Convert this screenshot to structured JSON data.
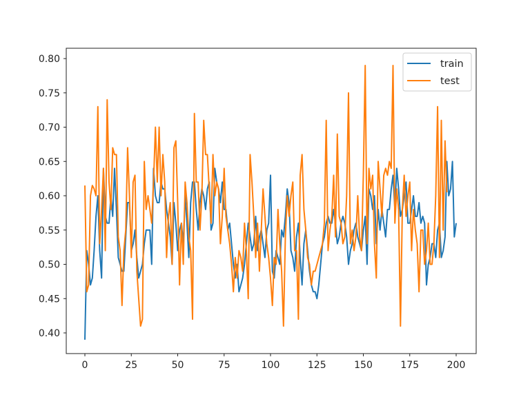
{
  "chart_data": {
    "type": "line",
    "title": "",
    "xlabel": "",
    "ylabel": "",
    "xlim": [
      -10,
      210
    ],
    "ylim": [
      0.375,
      0.82
    ],
    "xticks": [
      0,
      25,
      50,
      75,
      100,
      125,
      150,
      175,
      200
    ],
    "yticks": [
      0.4,
      0.45,
      0.5,
      0.55,
      0.6,
      0.65,
      0.7,
      0.75,
      0.8
    ],
    "ytick_labels": [
      "0.40",
      "0.45",
      "0.50",
      "0.55",
      "0.60",
      "0.65",
      "0.70",
      "0.75",
      "0.80"
    ],
    "grid": false,
    "legend_position": "upper right",
    "series": [
      {
        "name": "train",
        "color": "#1f77b4",
        "values": [
          0.39,
          0.52,
          0.5,
          0.47,
          0.48,
          0.52,
          0.57,
          0.6,
          0.52,
          0.48,
          0.64,
          0.57,
          0.56,
          0.56,
          0.6,
          0.57,
          0.64,
          0.58,
          0.51,
          0.5,
          0.49,
          0.49,
          0.54,
          0.59,
          0.59,
          0.52,
          0.53,
          0.55,
          0.51,
          0.48,
          0.49,
          0.5,
          0.53,
          0.55,
          0.55,
          0.55,
          0.5,
          0.64,
          0.6,
          0.59,
          0.59,
          0.62,
          0.61,
          0.61,
          0.58,
          0.56,
          0.54,
          0.5,
          0.59,
          0.56,
          0.52,
          0.55,
          0.56,
          0.53,
          0.6,
          0.56,
          0.51,
          0.59,
          0.62,
          0.62,
          0.58,
          0.55,
          0.59,
          0.61,
          0.6,
          0.58,
          0.61,
          0.62,
          0.55,
          0.56,
          0.64,
          0.62,
          0.61,
          0.59,
          0.62,
          0.58,
          0.58,
          0.55,
          0.56,
          0.53,
          0.5,
          0.48,
          0.5,
          0.46,
          0.47,
          0.48,
          0.5,
          0.53,
          0.56,
          0.54,
          0.52,
          0.53,
          0.57,
          0.52,
          0.54,
          0.55,
          0.53,
          0.51,
          0.55,
          0.56,
          0.63,
          0.49,
          0.48,
          0.52,
          0.51,
          0.5,
          0.55,
          0.54,
          0.57,
          0.61,
          0.59,
          0.52,
          0.51,
          0.49,
          0.54,
          0.56,
          0.51,
          0.47,
          0.53,
          0.55,
          0.52,
          0.49,
          0.47,
          0.46,
          0.46,
          0.45,
          0.47,
          0.5,
          0.53,
          0.54,
          0.56,
          0.57,
          0.56,
          0.56,
          0.58,
          0.56,
          0.53,
          0.54,
          0.56,
          0.57,
          0.56,
          0.54,
          0.5,
          0.52,
          0.53,
          0.55,
          0.56,
          0.54,
          0.53,
          0.52,
          0.55,
          0.57,
          0.5,
          0.61,
          0.6,
          0.58,
          0.6,
          0.53,
          0.58,
          0.55,
          0.58,
          0.56,
          0.54,
          0.58,
          0.58,
          0.61,
          0.63,
          0.58,
          0.64,
          0.61,
          0.57,
          0.58,
          0.6,
          0.62,
          0.56,
          0.56,
          0.58,
          0.6,
          0.57,
          0.57,
          0.59,
          0.56,
          0.57,
          0.56,
          0.47,
          0.5,
          0.51,
          0.53,
          0.53,
          0.51,
          0.55,
          0.56,
          0.51,
          0.52,
          0.54,
          0.65,
          0.6,
          0.61,
          0.65,
          0.54,
          0.56
        ]
      },
      {
        "name": "test",
        "color": "#ff7f0e",
        "values": [
          0.615,
          0.46,
          0.47,
          0.6,
          0.615,
          0.61,
          0.6,
          0.73,
          0.53,
          0.58,
          0.64,
          0.52,
          0.74,
          0.62,
          0.58,
          0.67,
          0.66,
          0.66,
          0.54,
          0.52,
          0.44,
          0.52,
          0.55,
          0.67,
          0.6,
          0.51,
          0.62,
          0.63,
          0.49,
          0.45,
          0.41,
          0.42,
          0.65,
          0.58,
          0.6,
          0.58,
          0.56,
          0.62,
          0.7,
          0.62,
          0.7,
          0.6,
          0.66,
          0.62,
          0.51,
          0.57,
          0.59,
          0.5,
          0.67,
          0.68,
          0.59,
          0.47,
          0.56,
          0.5,
          0.62,
          0.59,
          0.54,
          0.52,
          0.42,
          0.72,
          0.62,
          0.62,
          0.55,
          0.6,
          0.71,
          0.66,
          0.66,
          0.61,
          0.56,
          0.66,
          0.6,
          0.62,
          0.61,
          0.53,
          0.57,
          0.64,
          0.57,
          0.55,
          0.53,
          0.5,
          0.46,
          0.51,
          0.48,
          0.52,
          0.51,
          0.49,
          0.56,
          0.52,
          0.45,
          0.66,
          0.62,
          0.57,
          0.51,
          0.56,
          0.49,
          0.55,
          0.61,
          0.57,
          0.53,
          0.51,
          0.48,
          0.44,
          0.51,
          0.5,
          0.58,
          0.53,
          0.49,
          0.41,
          0.54,
          0.6,
          0.57,
          0.6,
          0.62,
          0.52,
          0.52,
          0.42,
          0.63,
          0.66,
          0.58,
          0.55,
          0.51,
          0.5,
          0.47,
          0.49,
          0.49,
          0.5,
          0.51,
          0.52,
          0.53,
          0.56,
          0.71,
          0.52,
          0.55,
          0.57,
          0.63,
          0.54,
          0.69,
          0.57,
          0.56,
          0.53,
          0.54,
          0.6,
          0.75,
          0.53,
          0.55,
          0.52,
          0.54,
          0.6,
          0.54,
          0.52,
          0.63,
          0.79,
          0.53,
          0.64,
          0.61,
          0.63,
          0.53,
          0.48,
          0.65,
          0.61,
          0.57,
          0.63,
          0.64,
          0.63,
          0.65,
          0.64,
          0.79,
          0.56,
          0.61,
          0.58,
          0.41,
          0.58,
          0.63,
          0.57,
          0.6,
          0.62,
          0.52,
          0.58,
          0.55,
          0.53,
          0.46,
          0.55,
          0.55,
          0.5,
          0.52,
          0.56,
          0.5,
          0.5,
          0.53,
          0.6,
          0.73,
          0.51,
          0.71,
          0.55,
          0.68,
          0.605
        ]
      }
    ]
  }
}
